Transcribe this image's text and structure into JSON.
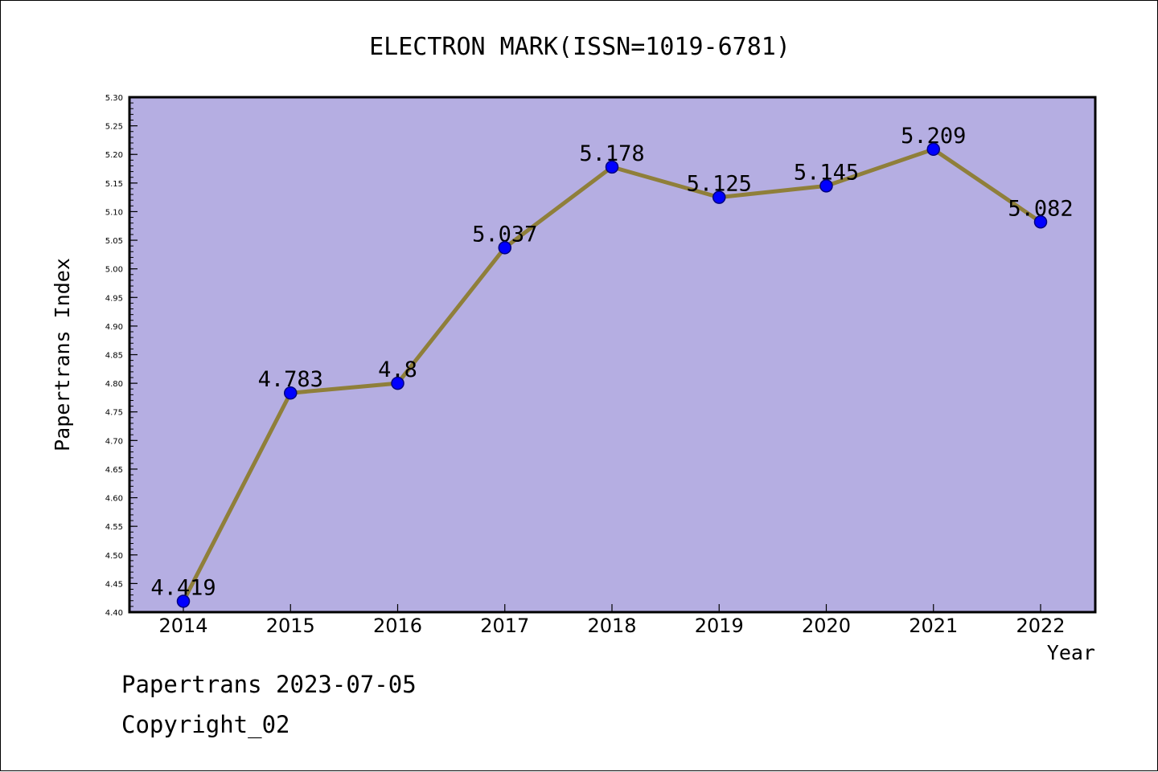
{
  "chart_data": {
    "type": "line",
    "title": "ELECTRON MARK(ISSN=1019-6781)",
    "xlabel": "Year",
    "ylabel": "Papertrans Index",
    "categories": [
      "2014",
      "2015",
      "2016",
      "2017",
      "2018",
      "2019",
      "2020",
      "2021",
      "2022"
    ],
    "series": [
      {
        "values": [
          4.419,
          4.783,
          4.8,
          5.037,
          5.178,
          5.125,
          5.145,
          5.209,
          5.082
        ],
        "labels": [
          "4.419",
          "4.783",
          "4.8",
          "5.037",
          "5.178",
          "5.125",
          "5.145",
          "5.209",
          "5.082"
        ]
      }
    ],
    "ylim": [
      4.4,
      5.3
    ],
    "yticks": [
      "4.40",
      "4.45",
      "4.50",
      "4.55",
      "4.60",
      "4.65",
      "4.70",
      "4.75",
      "4.80",
      "4.85",
      "4.90",
      "4.95",
      "5.00",
      "5.05",
      "5.10",
      "5.15",
      "5.20",
      "5.25",
      "5.30"
    ],
    "grid": false,
    "legend": "none"
  },
  "colors": {
    "plot_background": "#b5aee2",
    "line": "#8f7f3a",
    "marker_fill": "#0000ff",
    "marker_stroke": "#000080",
    "axes": "#000000"
  },
  "footer": {
    "line1": "Papertrans 2023-07-05",
    "line2": "Copyright_02"
  }
}
